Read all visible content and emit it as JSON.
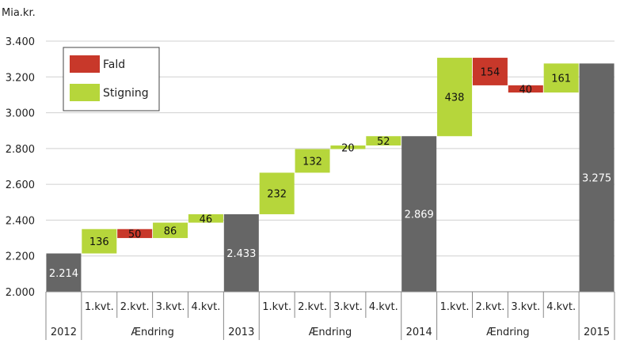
{
  "chart_data": {
    "type": "waterfall",
    "ylabel": "Mia.kr.",
    "ylim": [
      2000,
      3400
    ],
    "yticks": [
      2000,
      2200,
      2400,
      2600,
      2800,
      3000,
      3200,
      3400
    ],
    "ytick_labels": [
      "2.000",
      "2.200",
      "2.400",
      "2.600",
      "2.800",
      "3.000",
      "3.200",
      "3.400"
    ],
    "legend": {
      "placement": "top-left",
      "entries": [
        {
          "name": "Fald",
          "color": "#c8382a"
        },
        {
          "name": "Stigning",
          "color": "#b6d63b"
        }
      ]
    },
    "colors": {
      "total": "#666666",
      "increase": "#b6d63b",
      "decrease": "#c8382a",
      "grid": "#d0d0d0"
    },
    "bars": [
      {
        "kind": "total",
        "start": 2000,
        "end": 2214,
        "label": "2.214",
        "cat": "2012"
      },
      {
        "kind": "increase",
        "start": 2214,
        "end": 2350,
        "label": "136",
        "cat": "1.kvt."
      },
      {
        "kind": "decrease",
        "start": 2350,
        "end": 2300,
        "label": "50",
        "cat": "2.kvt."
      },
      {
        "kind": "increase",
        "start": 2300,
        "end": 2386,
        "label": "86",
        "cat": "3.kvt."
      },
      {
        "kind": "increase",
        "start": 2386,
        "end": 2433,
        "label": "46",
        "cat": "4.kvt."
      },
      {
        "kind": "total",
        "start": 2000,
        "end": 2433,
        "label": "2.433",
        "cat": "2013"
      },
      {
        "kind": "increase",
        "start": 2433,
        "end": 2665,
        "label": "232",
        "cat": "1.kvt."
      },
      {
        "kind": "increase",
        "start": 2665,
        "end": 2797,
        "label": "132",
        "cat": "2.kvt."
      },
      {
        "kind": "increase",
        "start": 2797,
        "end": 2817,
        "label": "20",
        "cat": "3.kvt."
      },
      {
        "kind": "increase",
        "start": 2817,
        "end": 2869,
        "label": "52",
        "cat": "4.kvt."
      },
      {
        "kind": "total",
        "start": 2000,
        "end": 2869,
        "label": "2.869",
        "cat": "2014"
      },
      {
        "kind": "increase",
        "start": 2869,
        "end": 3307,
        "label": "438",
        "cat": "1.kvt."
      },
      {
        "kind": "decrease",
        "start": 3307,
        "end": 3153,
        "label": "154",
        "cat": "2.kvt."
      },
      {
        "kind": "decrease",
        "start": 3153,
        "end": 3113,
        "label": "40",
        "cat": "3.kvt."
      },
      {
        "kind": "increase",
        "start": 3113,
        "end": 3275,
        "label": "161",
        "cat": "4.kvt."
      },
      {
        "kind": "total",
        "start": 2000,
        "end": 3275,
        "label": "3.275",
        "cat": "2015"
      }
    ],
    "groups": [
      {
        "label": "Ændring",
        "from": 1,
        "to": 4
      },
      {
        "label": "Ændring",
        "from": 6,
        "to": 9
      },
      {
        "label": "Ændring",
        "from": 11,
        "to": 14
      }
    ]
  }
}
